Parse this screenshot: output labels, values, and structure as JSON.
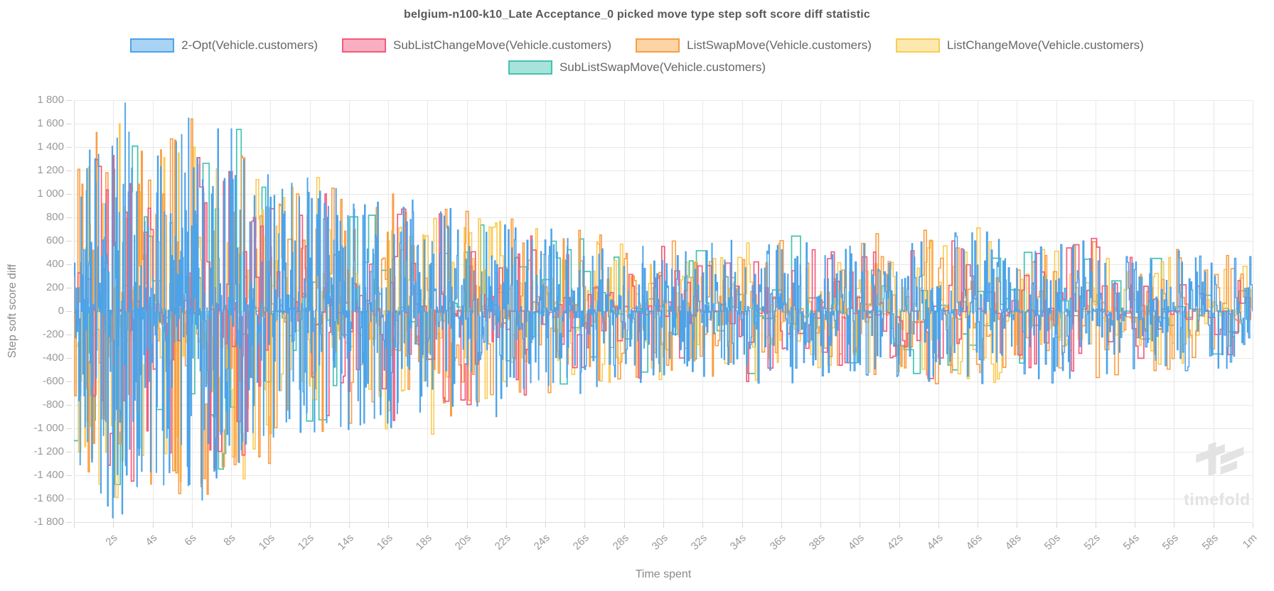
{
  "chart": {
    "title": "belgium-n100-k10_Late Acceptance_0 picked move type step soft score diff statistic",
    "x_axis_label": "Time spent",
    "y_axis_label": "Step soft score diff",
    "watermark": "timefold"
  },
  "colors": {
    "grid": "#e8e8e8",
    "axis_border": "#dedede",
    "tick_mark": "#d6d6d6",
    "tick_text": "#999999",
    "title_text": "#595959",
    "legend_text": "#666666",
    "watermark": "#e3e3e3"
  },
  "chart_data": {
    "type": "line",
    "stepped": true,
    "title": "belgium-n100-k10_Late Acceptance_0 picked move type step soft score diff statistic",
    "xlabel": "Time spent",
    "ylabel": "Step soft score diff",
    "xlim_seconds": [
      0,
      60
    ],
    "ylim": [
      -1800,
      1800
    ],
    "grid": true,
    "legend_position": "top",
    "legend_rows": [
      [
        0,
        1,
        2,
        3
      ],
      [
        4
      ]
    ],
    "x_tick_labels": [
      "2s",
      "4s",
      "6s",
      "8s",
      "10s",
      "12s",
      "14s",
      "16s",
      "18s",
      "20s",
      "22s",
      "24s",
      "26s",
      "28s",
      "30s",
      "32s",
      "34s",
      "36s",
      "38s",
      "40s",
      "42s",
      "44s",
      "46s",
      "48s",
      "50s",
      "52s",
      "54s",
      "56s",
      "58s",
      "1m"
    ],
    "x_tick_seconds": [
      2,
      4,
      6,
      8,
      10,
      12,
      14,
      16,
      18,
      20,
      22,
      24,
      26,
      28,
      30,
      32,
      34,
      36,
      38,
      40,
      42,
      44,
      46,
      48,
      50,
      52,
      54,
      56,
      58,
      60
    ],
    "y_tick_labels": [
      "1 800",
      "1 600",
      "1 400",
      "1 200",
      "1 000",
      "800",
      "600",
      "400",
      "200",
      "0",
      "-200",
      "-400",
      "-600",
      "-800",
      "-1 000",
      "-1 200",
      "-1 400",
      "-1 600",
      "-1 800"
    ],
    "y_tick_values": [
      1800,
      1600,
      1400,
      1200,
      1000,
      800,
      600,
      400,
      200,
      0,
      -200,
      -400,
      -600,
      -800,
      -1000,
      -1200,
      -1400,
      -1600,
      -1800
    ],
    "amplitude_envelope_by_seconds": [
      [
        0,
        1300
      ],
      [
        2,
        1800
      ],
      [
        4,
        1520
      ],
      [
        6,
        1660
      ],
      [
        8,
        1560
      ],
      [
        10,
        1200
      ],
      [
        12,
        1150
      ],
      [
        14,
        1020
      ],
      [
        16,
        1060
      ],
      [
        18,
        980
      ],
      [
        20,
        880
      ],
      [
        22,
        820
      ],
      [
        24,
        730
      ],
      [
        26,
        700
      ],
      [
        28,
        650
      ],
      [
        30,
        620
      ],
      [
        32,
        580
      ],
      [
        34,
        620
      ],
      [
        36,
        640
      ],
      [
        38,
        560
      ],
      [
        40,
        600
      ],
      [
        42,
        580
      ],
      [
        44,
        680
      ],
      [
        46,
        710
      ],
      [
        48,
        580
      ],
      [
        50,
        620
      ],
      [
        52,
        630
      ],
      [
        54,
        500
      ],
      [
        56,
        540
      ],
      [
        58,
        500
      ],
      [
        60,
        470
      ]
    ],
    "series": [
      {
        "name": "2-Opt(Vehicle.customers)",
        "color": "#4da3e8",
        "fill": "#a8d3f4",
        "line_width": 1.5,
        "points": 1900,
        "amplitude_scale": 1.0,
        "spike_exponent": 2.2,
        "seed": 11,
        "notable_peaks": [
          [
            2.6,
            1775
          ],
          [
            2.45,
            -1730
          ],
          [
            1.05,
            1300
          ],
          [
            4.4,
            1230
          ],
          [
            21.5,
            -900
          ],
          [
            24.3,
            700
          ],
          [
            57.3,
            470
          ]
        ]
      },
      {
        "name": "SubListChangeMove(Vehicle.customers)",
        "color": "#f25c7d",
        "fill": "#f9aec1",
        "line_width": 1.7,
        "points": 420,
        "amplitude_scale": 0.92,
        "spike_exponent": 2.0,
        "seed": 23,
        "notable_peaks": [
          [
            6.3,
            1310
          ],
          [
            7.9,
            1190
          ],
          [
            2.9,
            -1450
          ],
          [
            18.6,
            830
          ],
          [
            51.8,
            620
          ],
          [
            34.2,
            -600
          ]
        ]
      },
      {
        "name": "ListSwapMove(Vehicle.customers)",
        "color": "#f99e43",
        "fill": "#fcd4a5",
        "line_width": 1.6,
        "points": 640,
        "amplitude_scale": 0.98,
        "spike_exponent": 1.9,
        "seed": 37,
        "notable_peaks": [
          [
            0.2,
            1210
          ],
          [
            6.0,
            1640
          ],
          [
            13.1,
            1050
          ],
          [
            16.2,
            1000
          ],
          [
            40.8,
            660
          ],
          [
            43.3,
            690
          ],
          [
            9.9,
            -1300
          ]
        ]
      },
      {
        "name": "ListChangeMove(Vehicle.customers)",
        "color": "#fbca54",
        "fill": "#fde9ad",
        "line_width": 1.6,
        "points": 620,
        "amplitude_scale": 0.95,
        "spike_exponent": 1.9,
        "seed": 51,
        "notable_peaks": [
          [
            2.1,
            -1590
          ],
          [
            8.6,
            -1430
          ],
          [
            5.3,
            1350
          ],
          [
            18.2,
            -1050
          ],
          [
            46.0,
            710
          ],
          [
            12.4,
            1140
          ]
        ]
      },
      {
        "name": "SubListSwapMove(Vehicle.customers)",
        "color": "#43c2b2",
        "fill": "#a7e3da",
        "line_width": 1.7,
        "points": 220,
        "amplitude_scale": 0.88,
        "spike_exponent": 1.9,
        "seed": 67,
        "notable_peaks": [
          [
            8.35,
            1550
          ],
          [
            2.2,
            -1480
          ],
          [
            36.5,
            640
          ],
          [
            55.0,
            450
          ],
          [
            28.9,
            -520
          ]
        ]
      }
    ],
    "draw_order": [
      4,
      3,
      2,
      1,
      0
    ]
  }
}
